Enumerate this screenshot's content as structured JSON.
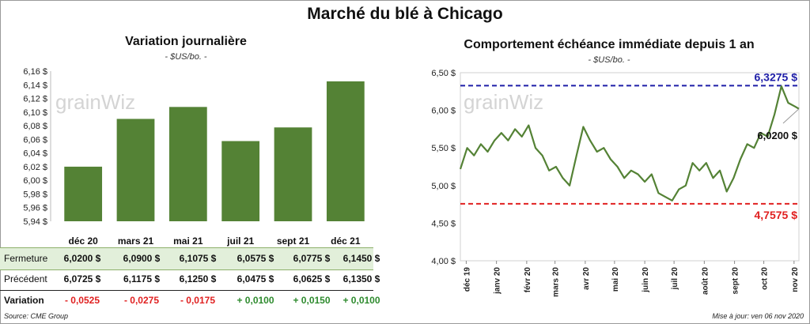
{
  "title": "Marché du blé à Chicago",
  "left": {
    "title": "Variation  journalière",
    "unit": "- $US/bo. -",
    "watermark": "grainWiz",
    "y_ticks": [
      "6,16 $",
      "6,14 $",
      "6,12 $",
      "6,10 $",
      "6,08 $",
      "6,06 $",
      "6,04 $",
      "6,02 $",
      "6,00 $",
      "5,98 $",
      "5,96 $",
      "5,94 $"
    ]
  },
  "right": {
    "title": "Comportement  échéance immédiate depuis 1 an",
    "unit": "- $US/bo. -",
    "watermark": "grainWiz",
    "y_ticks": [
      "6,50 $",
      "6,00 $",
      "5,50 $",
      "5,00 $",
      "4,50 $",
      "4,00 $"
    ],
    "x_ticks": [
      "déc 19",
      "janv 20",
      "févr 20",
      "mars 20",
      "avr 20",
      "mai 20",
      "juin 20",
      "juil 20",
      "août 20",
      "sept 20",
      "oct 20",
      "nov 20"
    ],
    "high_label": "6,3275  $",
    "low_label": "4,7575  $",
    "last_label": "6,0200 $"
  },
  "table": {
    "months": [
      "déc 20",
      "mars 21",
      "mai 21",
      "juil 21",
      "sept 21",
      "déc 21"
    ],
    "close_label": "Fermeture",
    "close": [
      "6,0200  $",
      "6,0900  $",
      "6,1075  $",
      "6,0575  $",
      "6,0775  $",
      "6,1450  $"
    ],
    "prev_label": "Précédent",
    "prev": [
      "6,0725  $",
      "6,1175  $",
      "6,1250  $",
      "6,0475  $",
      "6,0625  $",
      "6,1350  $"
    ],
    "var_label": "Variation",
    "var": [
      "- 0,0525",
      "- 0,0275",
      "- 0,0175",
      "+ 0,0100",
      "+ 0,0150",
      "+ 0,0100"
    ]
  },
  "footer": {
    "source": "Source: CME Group",
    "updated": "Mise à jour: ven 06 nov 2020"
  },
  "colors": {
    "bar": "#548235",
    "line": "#548235",
    "high": "#1f1fa8",
    "low": "#e02020",
    "close_row": "#e2efda",
    "negative": "#e02020",
    "positive": "#2e8b2e"
  },
  "chart_data": [
    {
      "type": "bar",
      "title": "Variation  journalière",
      "categories": [
        "déc 20",
        "mars 21",
        "mai 21",
        "juil 21",
        "sept 21",
        "déc 21"
      ],
      "values": [
        6.02,
        6.09,
        6.1075,
        6.0575,
        6.0775,
        6.145
      ],
      "ylim": [
        5.94,
        6.16
      ],
      "grid": false
    },
    {
      "type": "line",
      "title": "Comportement  échéance immédiate depuis 1 an",
      "x": [
        "2019-11-25",
        "2019-12-02",
        "2019-12-09",
        "2019-12-16",
        "2019-12-23",
        "2019-12-30",
        "2020-01-06",
        "2020-01-13",
        "2020-01-20",
        "2020-01-27",
        "2020-02-03",
        "2020-02-10",
        "2020-02-17",
        "2020-02-24",
        "2020-03-02",
        "2020-03-09",
        "2020-03-16",
        "2020-03-23",
        "2020-03-30",
        "2020-04-06",
        "2020-04-13",
        "2020-04-20",
        "2020-04-27",
        "2020-05-04",
        "2020-05-11",
        "2020-05-18",
        "2020-05-25",
        "2020-06-01",
        "2020-06-08",
        "2020-06-15",
        "2020-06-22",
        "2020-06-29",
        "2020-07-06",
        "2020-07-13",
        "2020-07-20",
        "2020-07-27",
        "2020-08-03",
        "2020-08-10",
        "2020-08-17",
        "2020-08-24",
        "2020-08-31",
        "2020-09-07",
        "2020-09-14",
        "2020-09-21",
        "2020-09-28",
        "2020-10-05",
        "2020-10-12",
        "2020-10-19",
        "2020-10-26",
        "2020-11-02",
        "2020-11-06"
      ],
      "values": [
        5.22,
        5.5,
        5.4,
        5.55,
        5.45,
        5.6,
        5.7,
        5.6,
        5.75,
        5.65,
        5.8,
        5.5,
        5.4,
        5.2,
        5.25,
        5.1,
        5.0,
        5.4,
        5.78,
        5.6,
        5.45,
        5.5,
        5.35,
        5.25,
        5.1,
        5.2,
        5.15,
        5.05,
        5.15,
        4.9,
        4.85,
        4.8,
        4.95,
        5.0,
        5.3,
        5.2,
        5.3,
        5.1,
        5.2,
        4.92,
        5.1,
        5.35,
        5.55,
        5.5,
        5.7,
        5.65,
        5.95,
        6.32,
        6.1,
        6.05,
        6.02
      ],
      "ylim": [
        4.0,
        6.5
      ],
      "annotations": [
        {
          "label": "6,3275  $",
          "value": 6.3275,
          "style": "dashed",
          "color": "#1f1fa8"
        },
        {
          "label": "4,7575  $",
          "value": 4.7575,
          "style": "dashed",
          "color": "#e02020"
        },
        {
          "label": "6,0200 $",
          "value": 6.02
        }
      ],
      "grid": false
    }
  ]
}
